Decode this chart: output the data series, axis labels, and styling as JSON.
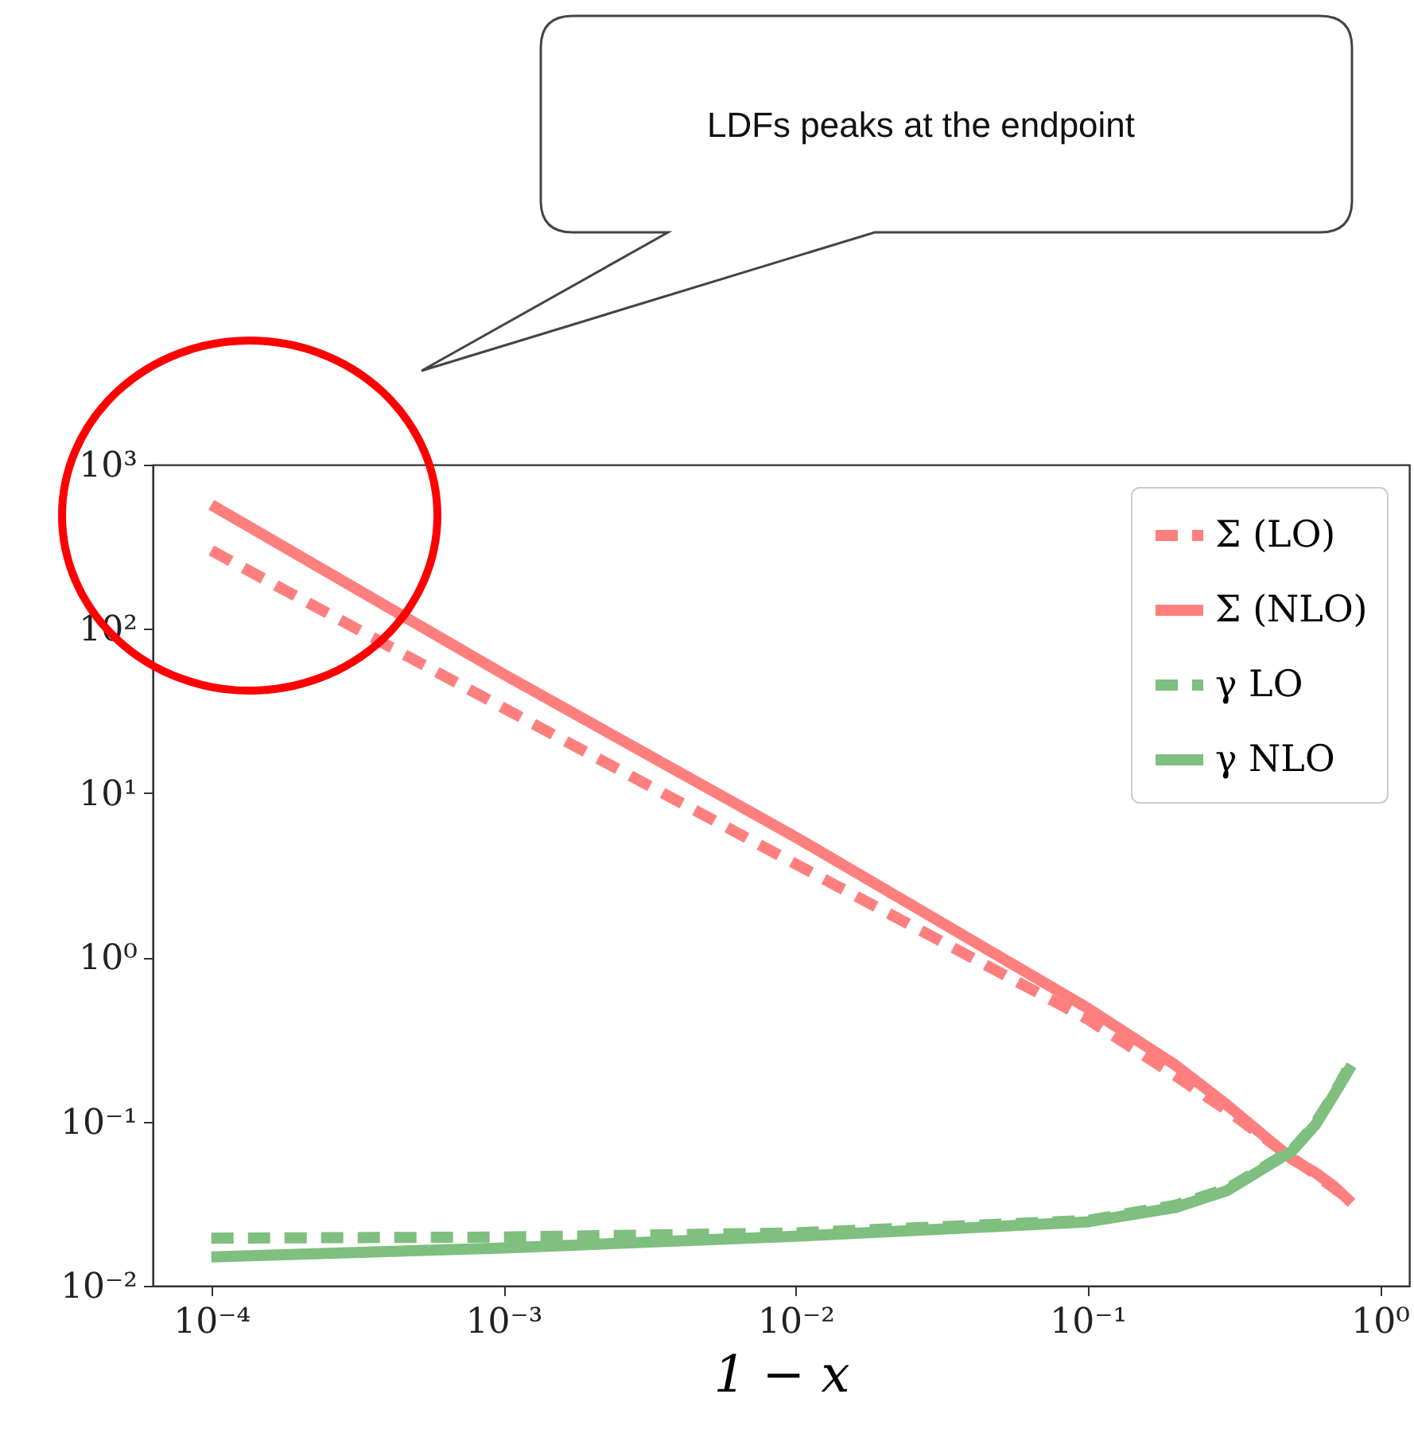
{
  "chart_data": {
    "type": "line",
    "xlabel": "1 − x",
    "annotations": [
      "LDFs peaks at the endpoint"
    ],
    "x": [
      0.0001,
      0.001,
      0.01,
      0.1,
      0.2,
      0.3,
      0.5,
      0.6,
      0.7,
      0.8
    ],
    "series": [
      {
        "name": "Σ (LO)",
        "color": "#ff7f7f",
        "line_style": "dashed",
        "values": [
          300,
          33,
          3.7,
          0.42,
          0.19,
          0.117,
          0.06,
          0.048,
          0.039,
          0.033
        ]
      },
      {
        "name": "Σ (NLO)",
        "color": "#ff7f7f",
        "line_style": "solid",
        "values": [
          570,
          53,
          5.4,
          0.49,
          0.22,
          0.126,
          0.059,
          0.049,
          0.04,
          0.032
        ]
      },
      {
        "name": "γ LO",
        "color": "#7fbf7f",
        "line_style": "dashed",
        "values": [
          0.0195,
          0.0198,
          0.021,
          0.025,
          0.031,
          0.039,
          0.067,
          0.097,
          0.15,
          0.23
        ]
      },
      {
        "name": "γ NLO",
        "color": "#7fbf7f",
        "line_style": "solid",
        "values": [
          0.015,
          0.017,
          0.02,
          0.0245,
          0.03,
          0.038,
          0.066,
          0.095,
          0.148,
          0.22
        ]
      }
    ],
    "log": "xy",
    "xlim": [
      6.3e-05,
      1.26
    ],
    "ylim": [
      0.01,
      1000
    ],
    "xticks": [
      {
        "value": 0.0001,
        "label": "10⁻⁴"
      },
      {
        "value": 0.001,
        "label": "10⁻³"
      },
      {
        "value": 0.01,
        "label": "10⁻²"
      },
      {
        "value": 0.1,
        "label": "10⁻¹"
      },
      {
        "value": 1,
        "label": "10⁰"
      }
    ],
    "yticks": [
      {
        "value": 0.01,
        "label": "10⁻²"
      },
      {
        "value": 0.1,
        "label": "10⁻¹"
      },
      {
        "value": 1,
        "label": "10⁰"
      },
      {
        "value": 10,
        "label": "10¹"
      },
      {
        "value": 100,
        "label": "10²"
      },
      {
        "value": 1000,
        "label": "10³"
      }
    ],
    "legend": "top right",
    "grid": false
  }
}
